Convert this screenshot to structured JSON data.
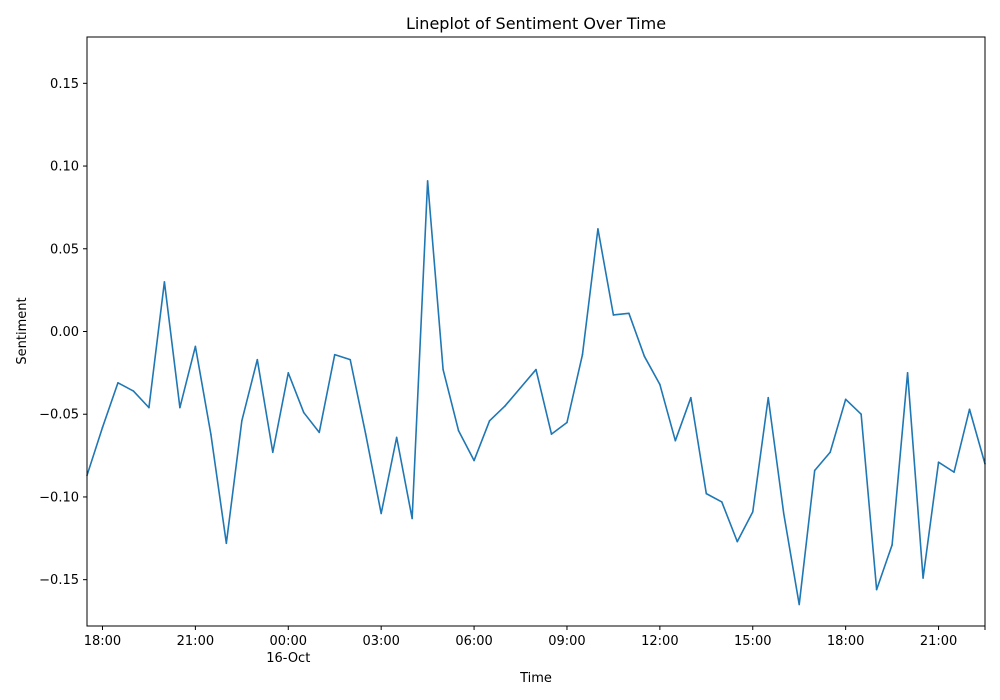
{
  "chart_data": {
    "type": "line",
    "title": "Lineplot of Sentiment Over Time",
    "xlabel": "Time",
    "ylabel": "Sentiment",
    "x_start": "2023-10-15 17:30",
    "x_end": "2023-10-16 22:30",
    "ylim": [
      -0.178,
      0.178
    ],
    "grid": false,
    "legend": "none",
    "x_ticks": [
      {
        "time": "2023-10-15 18:00",
        "label": "18:00",
        "sublabel": ""
      },
      {
        "time": "2023-10-15 21:00",
        "label": "21:00",
        "sublabel": ""
      },
      {
        "time": "2023-10-16 00:00",
        "label": "00:00",
        "sublabel": "16-Oct"
      },
      {
        "time": "2023-10-16 03:00",
        "label": "03:00",
        "sublabel": ""
      },
      {
        "time": "2023-10-16 06:00",
        "label": "06:00",
        "sublabel": ""
      },
      {
        "time": "2023-10-16 09:00",
        "label": "09:00",
        "sublabel": ""
      },
      {
        "time": "2023-10-16 12:00",
        "label": "12:00",
        "sublabel": ""
      },
      {
        "time": "2023-10-16 15:00",
        "label": "15:00",
        "sublabel": ""
      },
      {
        "time": "2023-10-16 18:00",
        "label": "18:00",
        "sublabel": ""
      },
      {
        "time": "2023-10-16 21:00",
        "label": "21:00",
        "sublabel": ""
      }
    ],
    "y_ticks": [
      {
        "value": -0.15,
        "label": "−0.15"
      },
      {
        "value": -0.1,
        "label": "−0.10"
      },
      {
        "value": -0.05,
        "label": "−0.05"
      },
      {
        "value": 0.0,
        "label": "0.00"
      },
      {
        "value": 0.05,
        "label": "0.05"
      },
      {
        "value": 0.1,
        "label": "0.10"
      },
      {
        "value": 0.15,
        "label": "0.15"
      }
    ],
    "series": [
      {
        "color": "#1f77b4",
        "points": [
          {
            "x": "2023-10-15 17:30",
            "y": -0.087
          },
          {
            "x": "2023-10-15 18:00",
            "y": -0.058
          },
          {
            "x": "2023-10-15 18:30",
            "y": -0.031
          },
          {
            "x": "2023-10-15 19:00",
            "y": -0.036
          },
          {
            "x": "2023-10-15 19:30",
            "y": -0.046
          },
          {
            "x": "2023-10-15 20:00",
            "y": 0.03
          },
          {
            "x": "2023-10-15 20:30",
            "y": -0.046
          },
          {
            "x": "2023-10-15 21:00",
            "y": -0.009
          },
          {
            "x": "2023-10-15 21:30",
            "y": -0.062
          },
          {
            "x": "2023-10-15 22:00",
            "y": -0.128
          },
          {
            "x": "2023-10-15 22:30",
            "y": -0.054
          },
          {
            "x": "2023-10-15 23:00",
            "y": -0.017
          },
          {
            "x": "2023-10-15 23:30",
            "y": -0.073
          },
          {
            "x": "2023-10-16 00:00",
            "y": -0.025
          },
          {
            "x": "2023-10-16 00:30",
            "y": -0.049
          },
          {
            "x": "2023-10-16 01:00",
            "y": -0.061
          },
          {
            "x": "2023-10-16 01:30",
            "y": -0.014
          },
          {
            "x": "2023-10-16 02:00",
            "y": -0.017
          },
          {
            "x": "2023-10-16 02:30",
            "y": -0.062
          },
          {
            "x": "2023-10-16 03:00",
            "y": -0.11
          },
          {
            "x": "2023-10-16 03:30",
            "y": -0.064
          },
          {
            "x": "2023-10-16 04:00",
            "y": -0.113
          },
          {
            "x": "2023-10-16 04:30",
            "y": 0.091
          },
          {
            "x": "2023-10-16 05:00",
            "y": -0.023
          },
          {
            "x": "2023-10-16 05:30",
            "y": -0.06
          },
          {
            "x": "2023-10-16 06:00",
            "y": -0.078
          },
          {
            "x": "2023-10-16 06:30",
            "y": -0.054
          },
          {
            "x": "2023-10-16 07:00",
            "y": -0.045
          },
          {
            "x": "2023-10-16 07:30",
            "y": -0.034
          },
          {
            "x": "2023-10-16 08:00",
            "y": -0.023
          },
          {
            "x": "2023-10-16 08:30",
            "y": -0.062
          },
          {
            "x": "2023-10-16 09:00",
            "y": -0.055
          },
          {
            "x": "2023-10-16 09:30",
            "y": -0.014
          },
          {
            "x": "2023-10-16 10:00",
            "y": 0.062
          },
          {
            "x": "2023-10-16 10:30",
            "y": 0.01
          },
          {
            "x": "2023-10-16 11:00",
            "y": 0.011
          },
          {
            "x": "2023-10-16 11:30",
            "y": -0.015
          },
          {
            "x": "2023-10-16 12:00",
            "y": -0.032
          },
          {
            "x": "2023-10-16 12:30",
            "y": -0.066
          },
          {
            "x": "2023-10-16 13:00",
            "y": -0.04
          },
          {
            "x": "2023-10-16 13:30",
            "y": -0.098
          },
          {
            "x": "2023-10-16 14:00",
            "y": -0.103
          },
          {
            "x": "2023-10-16 14:30",
            "y": -0.127
          },
          {
            "x": "2023-10-16 15:00",
            "y": -0.109
          },
          {
            "x": "2023-10-16 15:30",
            "y": -0.04
          },
          {
            "x": "2023-10-16 16:00",
            "y": -0.11
          },
          {
            "x": "2023-10-16 16:30",
            "y": -0.165
          },
          {
            "x": "2023-10-16 17:00",
            "y": -0.084
          },
          {
            "x": "2023-10-16 17:30",
            "y": -0.073
          },
          {
            "x": "2023-10-16 18:00",
            "y": -0.041
          },
          {
            "x": "2023-10-16 18:30",
            "y": -0.05
          },
          {
            "x": "2023-10-16 19:00",
            "y": -0.156
          },
          {
            "x": "2023-10-16 19:30",
            "y": -0.129
          },
          {
            "x": "2023-10-16 20:00",
            "y": -0.025
          },
          {
            "x": "2023-10-16 20:30",
            "y": -0.149
          },
          {
            "x": "2023-10-16 21:00",
            "y": -0.079
          },
          {
            "x": "2023-10-16 21:30",
            "y": -0.085
          },
          {
            "x": "2023-10-16 22:00",
            "y": -0.047
          },
          {
            "x": "2023-10-16 22:30",
            "y": -0.08
          }
        ]
      }
    ]
  }
}
